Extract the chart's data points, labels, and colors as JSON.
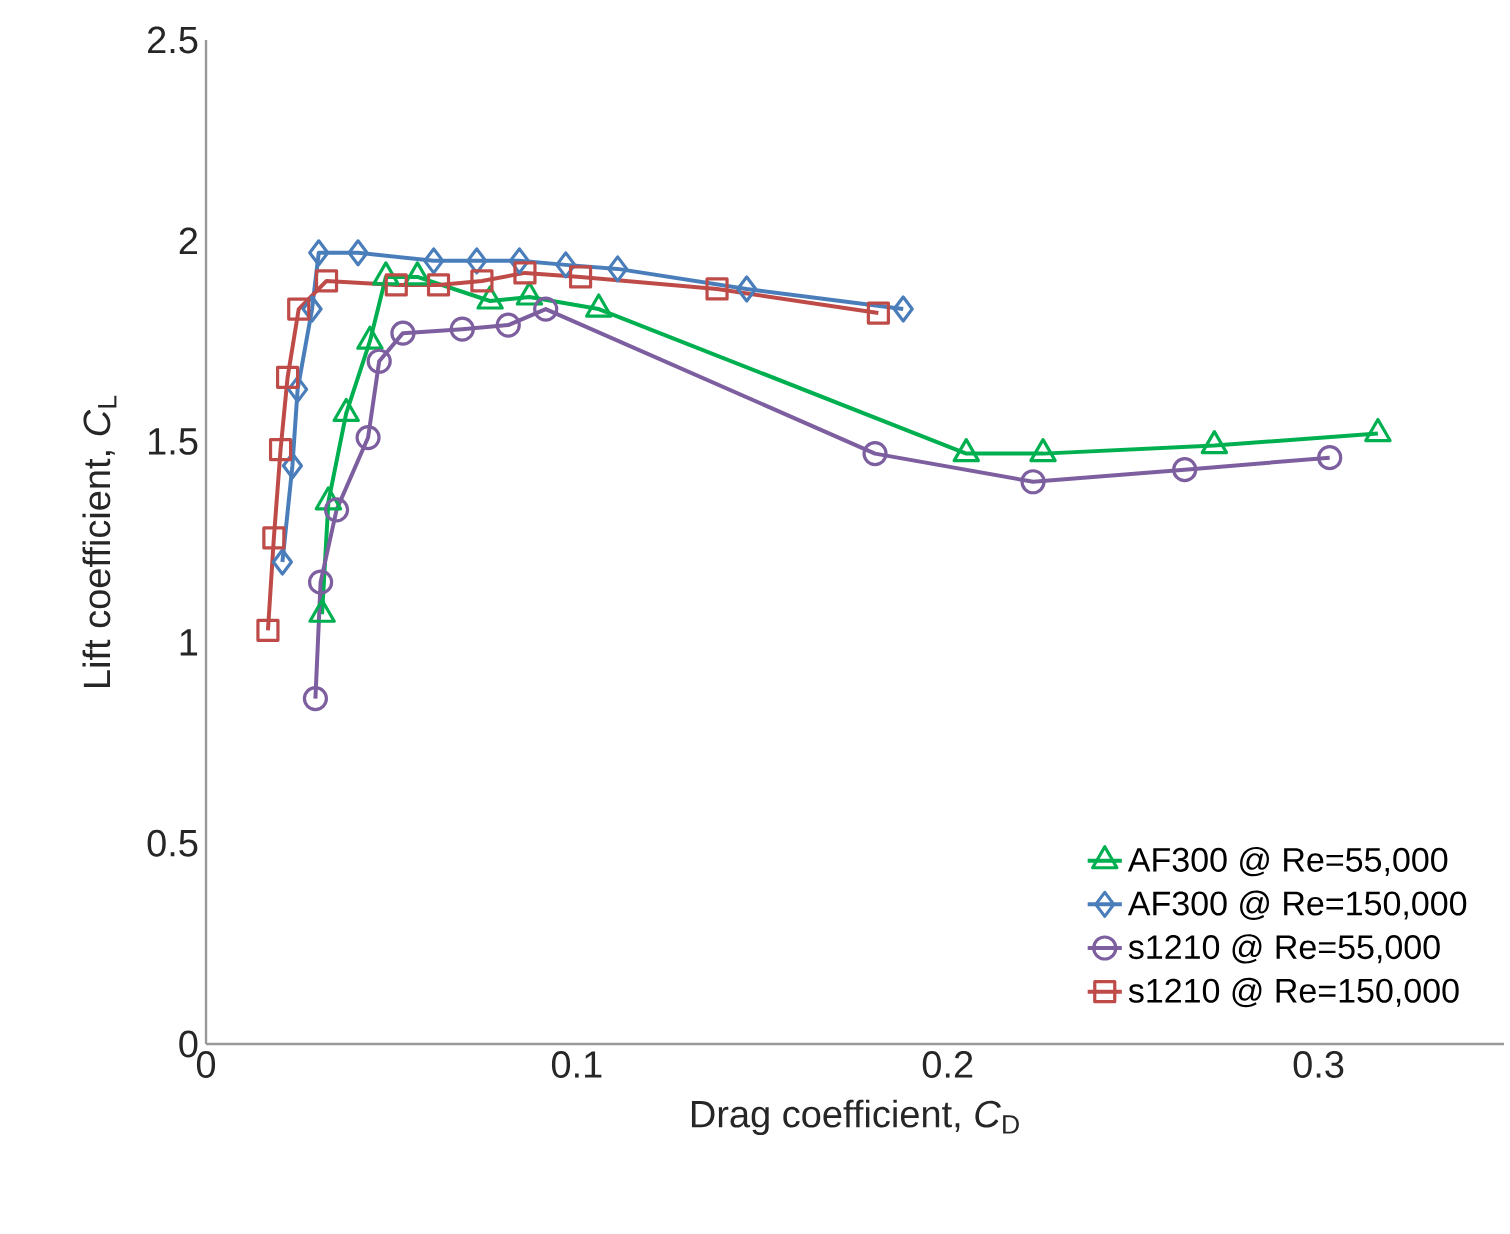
{
  "chart_data": {
    "type": "line",
    "xlabel": "Drag coefficient, *C*$_{D}$",
    "ylabel": "Lift coefficient, *C*$_{L}$",
    "xlim": [
      0,
      0.35
    ],
    "ylim": [
      0,
      2.5
    ],
    "xticks": [
      0,
      0.1,
      0.2,
      0.3
    ],
    "yticks": [
      0,
      0.5,
      1,
      1.5,
      2,
      2.5
    ],
    "grid": false,
    "legend": "bottom right",
    "line_style": "solid",
    "series": [
      {
        "name": "AF300 @ Re=55,000",
        "color": "#00b050",
        "marker": "triangle",
        "x": [
          0.0313,
          0.033,
          0.0378,
          0.0442,
          0.0485,
          0.057,
          0.0766,
          0.0872,
          0.1059,
          0.205,
          0.2257,
          0.2719,
          0.316
        ],
        "values": [
          1.07,
          1.35,
          1.57,
          1.75,
          1.91,
          1.91,
          1.85,
          1.86,
          1.83,
          1.47,
          1.47,
          1.49,
          1.52
        ]
      },
      {
        "name": "AF300 @ Re=150,000",
        "color": "#4a7ebb",
        "marker": "diamond",
        "x": [
          0.0206,
          0.0233,
          0.0247,
          0.0286,
          0.0304,
          0.041,
          0.0614,
          0.073,
          0.0845,
          0.097,
          0.111,
          0.1458,
          0.188
        ],
        "values": [
          1.2,
          1.44,
          1.63,
          1.83,
          1.97,
          1.97,
          1.95,
          1.95,
          1.95,
          1.94,
          1.93,
          1.88,
          1.83
        ]
      },
      {
        "name": "s1210 @ Re=55,000",
        "color": "#7d5fa0",
        "marker": "circle",
        "x": [
          0.0295,
          0.0309,
          0.0352,
          0.0437,
          0.0467,
          0.0531,
          0.0691,
          0.0815,
          0.0916,
          0.1804,
          0.223,
          0.2639,
          0.303
        ],
        "values": [
          0.86,
          1.15,
          1.33,
          1.51,
          1.7,
          1.77,
          1.78,
          1.79,
          1.83,
          1.47,
          1.4,
          1.43,
          1.46
        ]
      },
      {
        "name": "s1210 @ Re=150,000",
        "color": "#be4b48",
        "marker": "square",
        "x": [
          0.0167,
          0.0183,
          0.0201,
          0.022,
          0.025,
          0.0325,
          0.0513,
          0.0627,
          0.0744,
          0.086,
          0.101,
          0.1378,
          0.1813
        ],
        "values": [
          1.03,
          1.26,
          1.48,
          1.66,
          1.83,
          1.9,
          1.89,
          1.89,
          1.9,
          1.92,
          1.91,
          1.88,
          1.82
        ]
      }
    ]
  }
}
